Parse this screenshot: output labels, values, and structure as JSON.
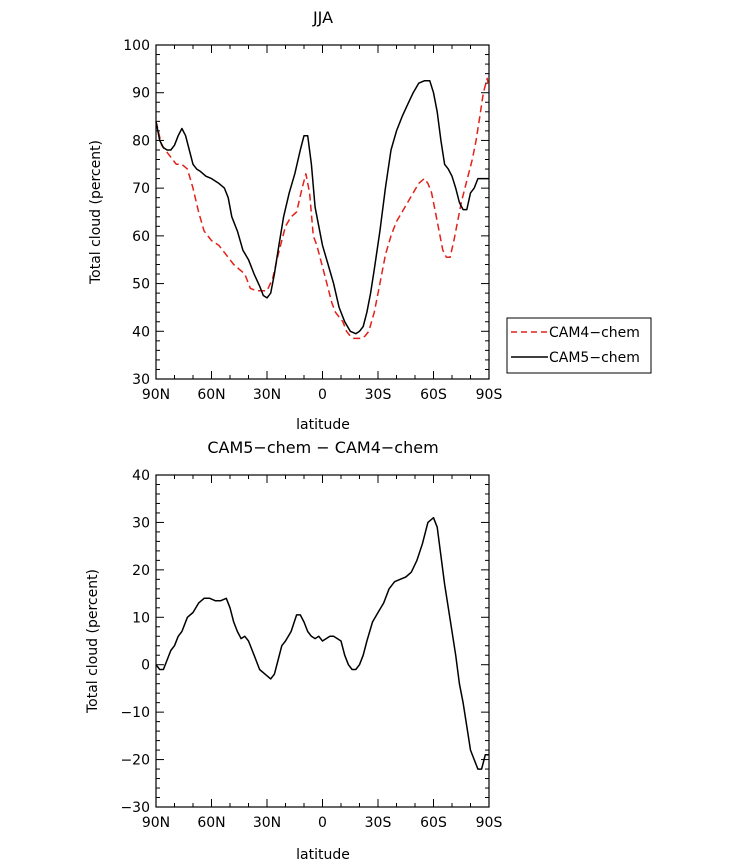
{
  "chart_data": [
    {
      "type": "line",
      "title": "JJA",
      "xlabel": "latitude",
      "ylabel": "Total cloud (percent)",
      "x_ticks": [
        90,
        60,
        30,
        0,
        -30,
        -60,
        -90
      ],
      "x_tick_labels": [
        "90N",
        "60N",
        "30N",
        "0",
        "30S",
        "60S",
        "90S"
      ],
      "xlim": [
        90,
        -90
      ],
      "ylim": [
        30,
        100
      ],
      "y_ticks": [
        30,
        40,
        50,
        60,
        70,
        80,
        90,
        100
      ],
      "y_tick_labels": [
        "30",
        "40",
        "50",
        "60",
        "70",
        "80",
        "90",
        "100"
      ],
      "legend": {
        "position": "right",
        "entries": [
          "CAM4−chem",
          "CAM5−chem"
        ]
      },
      "series": [
        {
          "name": "CAM4−chem",
          "color": "#e32119",
          "dash": "dashed",
          "x": [
            90,
            87,
            83,
            79,
            76,
            73,
            70,
            67,
            64,
            60,
            56,
            52,
            48,
            45,
            42,
            39,
            36,
            33,
            30,
            27,
            24,
            20,
            17,
            14,
            11,
            9,
            7,
            5,
            3,
            1,
            -1,
            -3,
            -5,
            -7,
            -9,
            -11,
            -13,
            -15,
            -17,
            -19,
            -21,
            -23,
            -25,
            -28,
            -31,
            -34,
            -37,
            -40,
            -43,
            -46,
            -49,
            -52,
            -55,
            -57,
            -59,
            -61,
            -63,
            -65,
            -67,
            -69,
            -71,
            -73,
            -75,
            -77,
            -79,
            -81,
            -83,
            -85,
            -87,
            -89,
            -90
          ],
          "y": [
            84,
            79,
            77,
            75,
            75,
            74,
            70,
            65,
            61,
            59,
            58,
            56,
            54,
            53,
            52,
            49,
            48.5,
            48.5,
            48.5,
            51,
            56,
            62,
            64,
            65,
            70,
            73,
            69,
            60,
            58,
            55,
            52,
            49,
            46,
            44,
            43,
            42,
            40,
            39,
            38.5,
            38.5,
            38.5,
            39,
            40,
            44,
            50,
            56,
            60,
            63,
            65,
            67,
            69,
            71,
            72,
            71,
            69,
            65,
            61,
            57,
            55.5,
            55.5,
            59,
            63,
            67,
            70,
            73,
            76,
            80,
            85,
            90,
            93,
            91
          ]
        },
        {
          "name": "CAM5−chem",
          "color": "#000000",
          "dash": "solid",
          "x": [
            90,
            88,
            86,
            84,
            82,
            80,
            78,
            76,
            74,
            72,
            70,
            68,
            66,
            63,
            60,
            56,
            53,
            51,
            49,
            46,
            43,
            40,
            37,
            34,
            32,
            30,
            28,
            26,
            24,
            21,
            18,
            15,
            12,
            10,
            8,
            6,
            4,
            2,
            0,
            -3,
            -6,
            -9,
            -12,
            -15,
            -18,
            -20,
            -22,
            -24,
            -26,
            -28,
            -31,
            -34,
            -37,
            -40,
            -43,
            -46,
            -49,
            -52,
            -55,
            -58,
            -60,
            -62,
            -64,
            -66,
            -68,
            -70,
            -72,
            -74,
            -76,
            -78,
            -80,
            -82,
            -84,
            -86,
            -88,
            -90
          ],
          "y": [
            84,
            80,
            78.5,
            78,
            78,
            79,
            81,
            82.5,
            81,
            78,
            75,
            74,
            73.5,
            72.5,
            72,
            71,
            70,
            68,
            64,
            61,
            57,
            55,
            52,
            49.5,
            47.5,
            47,
            48,
            52,
            57,
            64,
            69,
            73,
            78,
            81,
            81,
            75,
            66,
            62,
            58,
            54,
            50,
            45,
            42,
            40,
            39.5,
            40,
            41,
            44,
            48,
            53,
            61,
            70,
            78,
            82,
            85,
            87.5,
            90,
            92,
            92.5,
            92.5,
            90,
            86,
            80,
            75,
            74,
            72.5,
            70,
            67,
            65.5,
            65.5,
            69,
            70,
            72,
            72,
            72,
            72
          ]
        }
      ]
    },
    {
      "type": "line",
      "title": "CAM5−chem − CAM4−chem",
      "xlabel": "latitude",
      "ylabel": "Total cloud (percent)",
      "x_ticks": [
        90,
        60,
        30,
        0,
        -30,
        -60,
        -90
      ],
      "x_tick_labels": [
        "90N",
        "60N",
        "30N",
        "0",
        "30S",
        "60S",
        "90S"
      ],
      "xlim": [
        90,
        -90
      ],
      "ylim": [
        -30,
        40
      ],
      "y_ticks": [
        -30,
        -20,
        -10,
        0,
        10,
        20,
        30,
        40
      ],
      "y_tick_labels": [
        "−30",
        "−20",
        "−10",
        "0",
        "10",
        "20",
        "30",
        "40"
      ],
      "series": [
        {
          "color": "#000000",
          "dash": "solid",
          "x": [
            90,
            88,
            86,
            84,
            82,
            80,
            78,
            76,
            73,
            70,
            67,
            64,
            61,
            58,
            55,
            52,
            50,
            48,
            46,
            44,
            42,
            40,
            37,
            34,
            31,
            28,
            26,
            24,
            22,
            20,
            17,
            14,
            12,
            10,
            8,
            6,
            4,
            2,
            0,
            -2,
            -4,
            -6,
            -8,
            -10,
            -12,
            -14,
            -16,
            -18,
            -20,
            -22,
            -24,
            -27,
            -30,
            -33,
            -36,
            -39,
            -42,
            -45,
            -48,
            -51,
            -54,
            -57,
            -60,
            -62,
            -64,
            -66,
            -68,
            -70,
            -72,
            -74,
            -76,
            -78,
            -80,
            -82,
            -84,
            -86,
            -88,
            -89,
            -90
          ],
          "y": [
            0,
            -1,
            -1,
            1,
            3,
            4,
            6,
            7,
            10,
            11,
            13,
            14,
            14,
            13.5,
            13.5,
            14,
            12,
            9,
            7,
            5.5,
            6,
            5,
            2,
            -1,
            -2,
            -3,
            -2,
            1,
            4,
            5,
            7,
            10.5,
            10.5,
            9,
            7,
            6,
            5.5,
            6,
            5,
            5.5,
            6,
            6,
            5.5,
            5,
            2,
            0,
            -1,
            -1,
            0,
            2,
            5,
            9,
            11,
            13,
            16,
            17.5,
            18,
            18.5,
            19.5,
            22,
            25.5,
            30,
            31,
            29,
            23,
            17,
            12,
            7,
            2,
            -4,
            -8,
            -13,
            -18,
            -20,
            -22,
            -22,
            -19,
            -19,
            -19
          ]
        }
      ]
    }
  ]
}
